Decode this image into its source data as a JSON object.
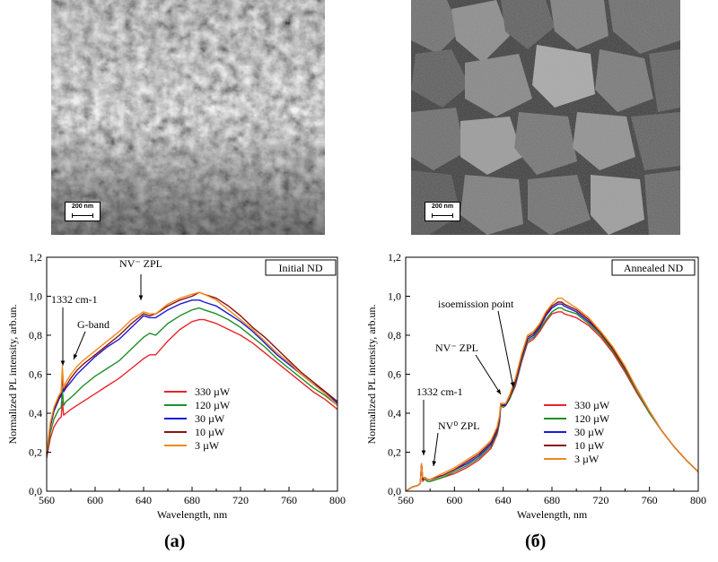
{
  "images": [
    {
      "name": "sem-initial",
      "scale_label": "200 nm"
    },
    {
      "name": "sem-annealed",
      "scale_label": "200 nm"
    }
  ],
  "panel_labels": [
    "(a)",
    "(б)"
  ],
  "chart_data": [
    {
      "type": "line",
      "title": "Initial ND",
      "xlabel": "Wavelength, nm",
      "ylabel": "Normalized PL intensity, arb.un.",
      "xlim": [
        560,
        800
      ],
      "ylim": [
        0.0,
        1.2
      ],
      "xticks": [
        560,
        600,
        640,
        680,
        720,
        760,
        800
      ],
      "yticks": [
        "0,0",
        "0,2",
        "0,4",
        "0,6",
        "0,8",
        "1,0",
        "1,2"
      ],
      "legend_position": "center-bottom",
      "annotations": [
        "1332 cm-1",
        "G-band",
        "NV⁻ ZPL"
      ],
      "x": [
        560,
        563,
        566,
        570,
        572,
        573,
        574,
        576,
        580,
        585,
        590,
        600,
        610,
        620,
        630,
        640,
        645,
        650,
        660,
        670,
        680,
        686,
        690,
        700,
        710,
        720,
        730,
        740,
        750,
        760,
        770,
        780,
        790,
        800
      ],
      "series": [
        {
          "name": "330 µW",
          "color": "#e8252b",
          "values": [
            0.17,
            0.27,
            0.33,
            0.37,
            0.38,
            0.46,
            0.39,
            0.4,
            0.42,
            0.44,
            0.46,
            0.5,
            0.54,
            0.58,
            0.63,
            0.68,
            0.7,
            0.7,
            0.77,
            0.83,
            0.87,
            0.88,
            0.88,
            0.86,
            0.83,
            0.8,
            0.76,
            0.71,
            0.66,
            0.61,
            0.56,
            0.51,
            0.47,
            0.42
          ]
        },
        {
          "name": "120 µW",
          "color": "#1f8f2a",
          "values": [
            0.18,
            0.3,
            0.37,
            0.42,
            0.43,
            0.52,
            0.44,
            0.46,
            0.48,
            0.51,
            0.54,
            0.59,
            0.63,
            0.67,
            0.73,
            0.79,
            0.81,
            0.8,
            0.86,
            0.9,
            0.93,
            0.94,
            0.93,
            0.91,
            0.88,
            0.84,
            0.79,
            0.74,
            0.68,
            0.63,
            0.58,
            0.53,
            0.49,
            0.44
          ]
        },
        {
          "name": "30 µW",
          "color": "#1a1ad8",
          "values": [
            0.19,
            0.33,
            0.41,
            0.47,
            0.49,
            0.6,
            0.51,
            0.53,
            0.56,
            0.6,
            0.63,
            0.69,
            0.74,
            0.78,
            0.84,
            0.9,
            0.89,
            0.89,
            0.93,
            0.96,
            0.98,
            0.98,
            0.97,
            0.95,
            0.91,
            0.87,
            0.82,
            0.76,
            0.7,
            0.65,
            0.6,
            0.55,
            0.51,
            0.45
          ]
        },
        {
          "name": "10 µW",
          "color": "#8b1111",
          "values": [
            0.19,
            0.34,
            0.42,
            0.48,
            0.5,
            0.62,
            0.52,
            0.54,
            0.58,
            0.62,
            0.65,
            0.7,
            0.75,
            0.8,
            0.86,
            0.91,
            0.9,
            0.91,
            0.95,
            0.98,
            1.0,
            1.02,
            1.01,
            0.99,
            0.95,
            0.9,
            0.84,
            0.79,
            0.73,
            0.67,
            0.61,
            0.56,
            0.51,
            0.46
          ]
        },
        {
          "name": "3 µW",
          "color": "#f08a1c",
          "values": [
            0.2,
            0.35,
            0.43,
            0.49,
            0.51,
            0.64,
            0.53,
            0.56,
            0.6,
            0.64,
            0.67,
            0.72,
            0.77,
            0.82,
            0.88,
            0.92,
            0.91,
            0.91,
            0.96,
            0.99,
            1.01,
            1.02,
            1.01,
            0.98,
            0.93,
            0.88,
            0.83,
            0.77,
            0.71,
            0.66,
            0.6,
            0.55,
            0.5,
            0.44
          ]
        }
      ]
    },
    {
      "type": "line",
      "title": "Annealed ND",
      "xlabel": "Wavelength, nm",
      "ylabel": "Normalized PL intensity, arb.un.",
      "xlim": [
        560,
        800
      ],
      "ylim": [
        0.0,
        1.2
      ],
      "xticks": [
        560,
        600,
        640,
        680,
        720,
        760,
        800
      ],
      "yticks": [
        "0,0",
        "0,2",
        "0,4",
        "0,6",
        "0,8",
        "1,0",
        "1,2"
      ],
      "legend_position": "right",
      "annotations": [
        "isoemission point",
        "NV⁻ ZPL",
        "1332 cm-1",
        "NV⁰ ZPL"
      ],
      "x": [
        560,
        565,
        570,
        572,
        573,
        574,
        575,
        576,
        578,
        580,
        590,
        600,
        610,
        620,
        630,
        635,
        637,
        638,
        640,
        642,
        645,
        650,
        655,
        660,
        665,
        670,
        675,
        680,
        685,
        688,
        690,
        700,
        710,
        720,
        730,
        740,
        750,
        760,
        770,
        780,
        790,
        800
      ],
      "series": [
        {
          "name": "330 µW",
          "color": "#e8252b",
          "values": [
            0.0,
            0.02,
            0.03,
            0.04,
            0.14,
            0.05,
            0.06,
            0.06,
            0.05,
            0.05,
            0.07,
            0.09,
            0.12,
            0.16,
            0.22,
            0.29,
            0.35,
            0.44,
            0.43,
            0.44,
            0.47,
            0.54,
            0.66,
            0.76,
            0.78,
            0.82,
            0.87,
            0.91,
            0.92,
            0.92,
            0.91,
            0.89,
            0.85,
            0.79,
            0.71,
            0.61,
            0.5,
            0.4,
            0.31,
            0.23,
            0.16,
            0.1
          ]
        },
        {
          "name": "120 µW",
          "color": "#1f8f2a",
          "values": [
            0.0,
            0.02,
            0.03,
            0.04,
            0.14,
            0.06,
            0.06,
            0.06,
            0.05,
            0.05,
            0.07,
            0.1,
            0.13,
            0.17,
            0.23,
            0.3,
            0.36,
            0.44,
            0.43,
            0.44,
            0.47,
            0.55,
            0.67,
            0.77,
            0.79,
            0.83,
            0.88,
            0.92,
            0.94,
            0.94,
            0.93,
            0.91,
            0.86,
            0.8,
            0.72,
            0.62,
            0.51,
            0.4,
            0.31,
            0.23,
            0.16,
            0.1
          ]
        },
        {
          "name": "30 µW",
          "color": "#1a1ad8",
          "values": [
            0.0,
            0.02,
            0.03,
            0.04,
            0.14,
            0.06,
            0.07,
            0.07,
            0.06,
            0.06,
            0.08,
            0.11,
            0.14,
            0.18,
            0.24,
            0.31,
            0.37,
            0.44,
            0.44,
            0.44,
            0.48,
            0.56,
            0.68,
            0.78,
            0.8,
            0.84,
            0.9,
            0.94,
            0.96,
            0.96,
            0.95,
            0.92,
            0.87,
            0.81,
            0.73,
            0.63,
            0.52,
            0.41,
            0.31,
            0.23,
            0.16,
            0.1
          ]
        },
        {
          "name": "10 µW",
          "color": "#8b1111",
          "values": [
            0.0,
            0.02,
            0.03,
            0.04,
            0.14,
            0.06,
            0.07,
            0.07,
            0.06,
            0.06,
            0.08,
            0.11,
            0.15,
            0.19,
            0.25,
            0.32,
            0.38,
            0.45,
            0.44,
            0.45,
            0.48,
            0.57,
            0.69,
            0.79,
            0.81,
            0.85,
            0.91,
            0.95,
            0.97,
            0.97,
            0.96,
            0.93,
            0.88,
            0.81,
            0.73,
            0.63,
            0.52,
            0.41,
            0.31,
            0.23,
            0.16,
            0.1
          ]
        },
        {
          "name": "3 µW",
          "color": "#f08a1c",
          "values": [
            0.0,
            0.02,
            0.03,
            0.04,
            0.14,
            0.07,
            0.07,
            0.07,
            0.06,
            0.06,
            0.09,
            0.12,
            0.16,
            0.2,
            0.26,
            0.33,
            0.39,
            0.45,
            0.45,
            0.45,
            0.49,
            0.58,
            0.7,
            0.8,
            0.82,
            0.86,
            0.92,
            0.96,
            0.99,
            0.99,
            0.98,
            0.94,
            0.89,
            0.82,
            0.74,
            0.64,
            0.52,
            0.41,
            0.31,
            0.23,
            0.16,
            0.1
          ]
        }
      ]
    }
  ]
}
